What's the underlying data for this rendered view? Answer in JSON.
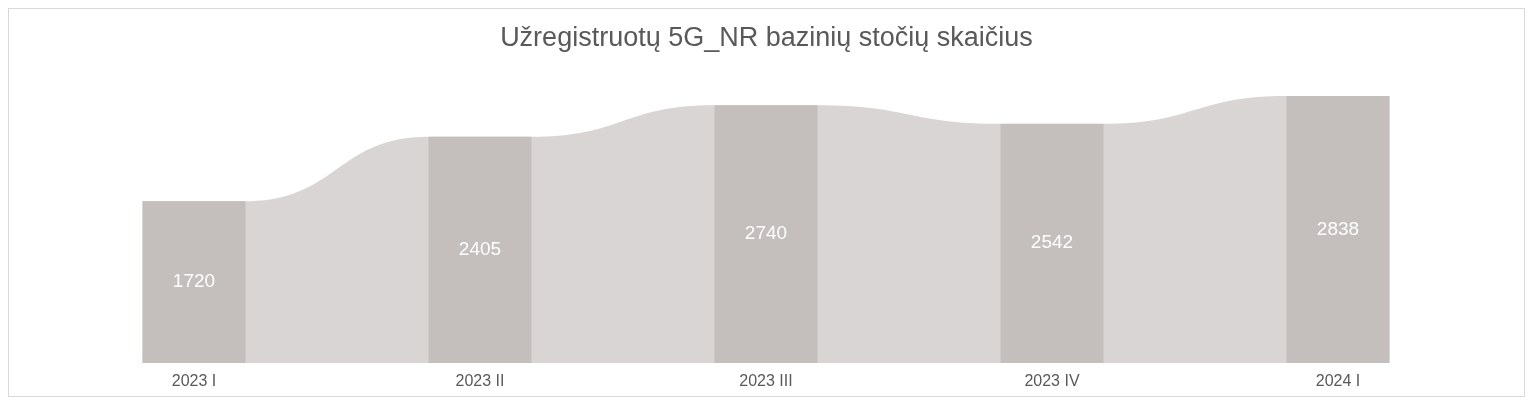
{
  "chart_data": {
    "type": "bar",
    "title": "Užregistruotų 5G_NR bazinių stočių skaičius",
    "categories": [
      "2023 I",
      "2023 II",
      "2023 III",
      "2023 IV",
      "2024 I"
    ],
    "values": [
      1720,
      2405,
      2740,
      2542,
      2838
    ],
    "color": "#c4bebd",
    "data_labels": true
  }
}
